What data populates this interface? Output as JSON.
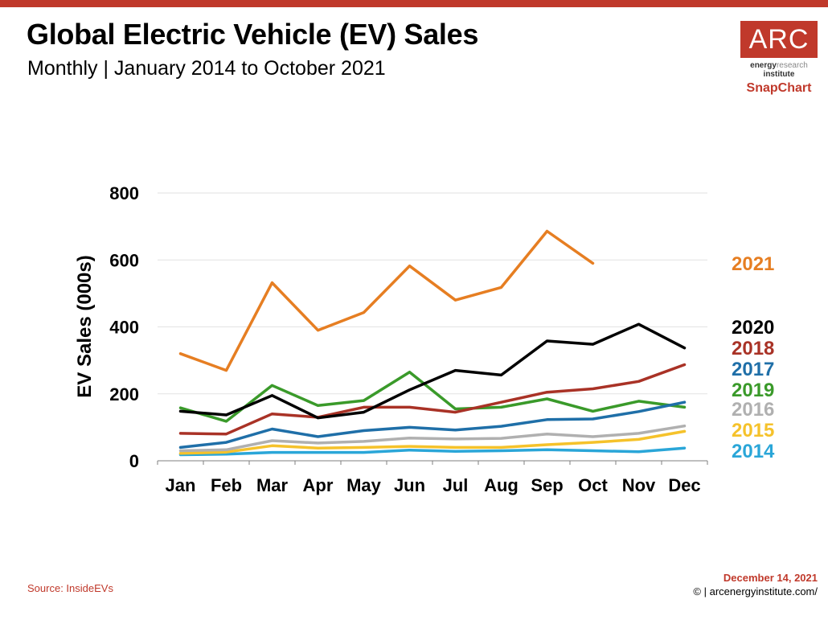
{
  "header": {
    "title": "Global Electric Vehicle (EV) Sales",
    "subtitle": "Monthly | January 2014 to October 2021"
  },
  "logo": {
    "mark": "ARC",
    "line1_bold": "energy",
    "line1_light": "research",
    "line2": "institute",
    "line3": "SnapChart",
    "brand_color": "#c0392b"
  },
  "footer": {
    "source": "Source: InsideEVs",
    "date": "December 14, 2021",
    "copyright": "© | arcenergyinstitute.com/"
  },
  "chart_data": {
    "type": "line",
    "title": "",
    "xlabel": "",
    "ylabel": "EV Sales (000s)",
    "ylim": [
      0,
      800
    ],
    "yticks": [
      0,
      200,
      400,
      600,
      800
    ],
    "grid": true,
    "legend_placement": "right",
    "categories": [
      "Jan",
      "Feb",
      "Mar",
      "Apr",
      "May",
      "Jun",
      "Jul",
      "Aug",
      "Sep",
      "Oct",
      "Nov",
      "Dec"
    ],
    "series": [
      {
        "name": "2021",
        "color": "#e67e22",
        "values": [
          320,
          270,
          532,
          390,
          443,
          582,
          480,
          518,
          686,
          590,
          null,
          null
        ]
      },
      {
        "name": "2020",
        "color": "#000000",
        "values": [
          148,
          137,
          195,
          128,
          145,
          212,
          270,
          256,
          358,
          348,
          408,
          337
        ]
      },
      {
        "name": "2018",
        "color": "#a93226",
        "values": [
          82,
          80,
          140,
          130,
          160,
          160,
          145,
          175,
          205,
          215,
          237,
          287
        ]
      },
      {
        "name": "2017",
        "color": "#1f6fa8",
        "values": [
          40,
          55,
          95,
          72,
          90,
          100,
          92,
          103,
          123,
          125,
          147,
          175
        ]
      },
      {
        "name": "2019",
        "color": "#3a9a2a",
        "values": [
          158,
          118,
          225,
          165,
          180,
          265,
          155,
          160,
          185,
          148,
          178,
          160
        ]
      },
      {
        "name": "2016",
        "color": "#b0b0b0",
        "values": [
          30,
          33,
          60,
          53,
          58,
          68,
          65,
          67,
          80,
          72,
          82,
          104
        ]
      },
      {
        "name": "2015",
        "color": "#f5c22b",
        "values": [
          22,
          26,
          45,
          38,
          40,
          43,
          40,
          40,
          48,
          55,
          64,
          88
        ]
      },
      {
        "name": "2014",
        "color": "#2aa6d8",
        "values": [
          18,
          20,
          25,
          25,
          25,
          32,
          28,
          30,
          33,
          30,
          27,
          38
        ]
      }
    ]
  }
}
